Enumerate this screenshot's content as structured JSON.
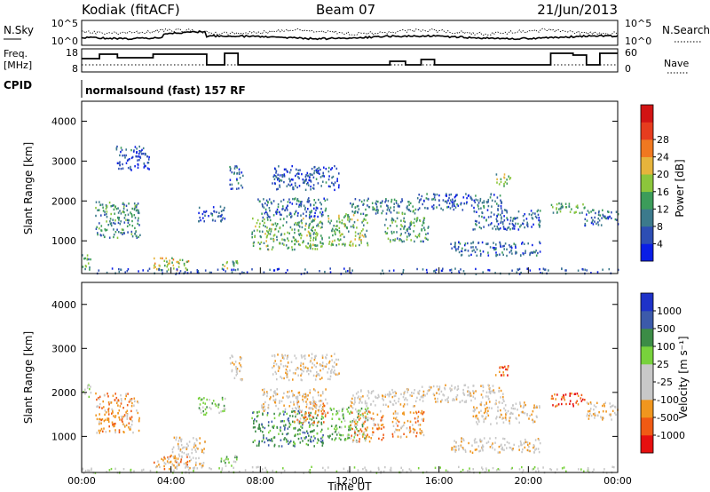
{
  "header": {
    "station": "Kodiak (fitACF)",
    "beam": "Beam 07",
    "date": "21/Jun/2013",
    "cpid_label": "CPID",
    "cpid_value": "normalsound (fast) 157 RF"
  },
  "noise_panel": {
    "left_label": "N.Sky",
    "right_label": "N.Search",
    "left_ticks": [
      "10^5",
      "10^0"
    ],
    "right_ticks": [
      "10^5",
      "10^0"
    ]
  },
  "freq_panel": {
    "left_label_line1": "Freq.",
    "left_label_line2": "[MHz]",
    "right_label": "Nave",
    "left_ticks": [
      "18",
      "8"
    ],
    "right_ticks": [
      "60",
      "0"
    ]
  },
  "colors": {
    "power": [
      "#0a1ee6",
      "#2d4eb4",
      "#3c7a8c",
      "#3c9c5a",
      "#8cc63c",
      "#e6b43c",
      "#f07820",
      "#e63c1e",
      "#d21414"
    ],
    "velocity": [
      "#e60f0f",
      "#f05a14",
      "#f0961e",
      "#c8c8c8",
      "#c8c8c8",
      "#78d23c",
      "#3c8c46",
      "#3c5aaa",
      "#1e32c8"
    ]
  },
  "chart_data": [
    {
      "type": "heatmap",
      "name": "power",
      "xlabel": "",
      "ylabel": "Slant Range [km]",
      "xlim": [
        "00:00",
        "00:00"
      ],
      "ylim": [
        180,
        4500
      ],
      "y_ticks": [
        "1000",
        "2000",
        "3000",
        "4000"
      ],
      "colorbar": {
        "label": "Power [dB]",
        "ticks": [
          "4",
          "8",
          "12",
          "16",
          "20",
          "24",
          "28"
        ],
        "range": [
          0,
          30
        ]
      },
      "echo_regions": [
        {
          "t0": 0.0,
          "t1": 0.4,
          "r0": 250,
          "r1": 700,
          "v": 10
        },
        {
          "t0": 0.6,
          "t1": 2.6,
          "r0": 1100,
          "r1": 2000,
          "v": 9
        },
        {
          "t0": 1.5,
          "t1": 3.0,
          "r0": 2800,
          "r1": 3400,
          "v": 4
        },
        {
          "t0": 3.2,
          "t1": 4.8,
          "r0": 280,
          "r1": 600,
          "v": 16
        },
        {
          "t0": 5.2,
          "t1": 6.4,
          "r0": 1500,
          "r1": 1900,
          "v": 5
        },
        {
          "t0": 6.2,
          "t1": 7.0,
          "r0": 300,
          "r1": 550,
          "v": 13
        },
        {
          "t0": 6.6,
          "t1": 7.2,
          "r0": 2300,
          "r1": 2900,
          "v": 5
        },
        {
          "t0": 7.6,
          "t1": 10.8,
          "r0": 800,
          "r1": 1600,
          "v": 12
        },
        {
          "t0": 7.8,
          "t1": 11.0,
          "r0": 1600,
          "r1": 2100,
          "v": 6
        },
        {
          "t0": 8.5,
          "t1": 11.5,
          "r0": 2300,
          "r1": 2900,
          "v": 4
        },
        {
          "t0": 11.0,
          "t1": 12.8,
          "r0": 900,
          "r1": 1700,
          "v": 13
        },
        {
          "t0": 12.0,
          "t1": 15.0,
          "r0": 1700,
          "r1": 2100,
          "v": 8
        },
        {
          "t0": 13.5,
          "t1": 15.5,
          "r0": 1000,
          "r1": 1600,
          "v": 10
        },
        {
          "t0": 15.0,
          "t1": 19.0,
          "r0": 1800,
          "r1": 2200,
          "v": 5
        },
        {
          "t0": 16.5,
          "t1": 20.5,
          "r0": 650,
          "r1": 1000,
          "v": 5
        },
        {
          "t0": 17.5,
          "t1": 20.5,
          "r0": 1300,
          "r1": 1800,
          "v": 5
        },
        {
          "t0": 18.5,
          "t1": 19.2,
          "r0": 2400,
          "r1": 2700,
          "v": 14
        },
        {
          "t0": 21.0,
          "t1": 22.5,
          "r0": 1700,
          "r1": 2000,
          "v": 12
        },
        {
          "t0": 22.5,
          "t1": 24.0,
          "r0": 1400,
          "r1": 1800,
          "v": 6
        },
        {
          "t0": 0.0,
          "t1": 24.0,
          "r0": 190,
          "r1": 330,
          "v": 4
        }
      ]
    },
    {
      "type": "heatmap",
      "name": "velocity",
      "xlabel": "Time UT",
      "ylabel": "Slant Range [km]",
      "x_ticks": [
        "00:00",
        "04:00",
        "08:00",
        "12:00",
        "16:00",
        "20:00",
        "00:00"
      ],
      "ylim": [
        180,
        4500
      ],
      "y_ticks": [
        "1000",
        "2000",
        "3000",
        "4000"
      ],
      "colorbar": {
        "label": "Velocity [m s⁻¹]",
        "ticks": [
          "-1000",
          "-500",
          "-100",
          "-25",
          "25",
          "100",
          "500",
          "1000"
        ]
      },
      "echo_regions": [
        {
          "t0": 0.0,
          "t1": 0.4,
          "r0": 1900,
          "r1": 2200,
          "v": 4
        },
        {
          "t0": 0.6,
          "t1": 2.6,
          "r0": 1100,
          "r1": 2000,
          "v": 2
        },
        {
          "t0": 3.2,
          "t1": 4.8,
          "r0": 280,
          "r1": 600,
          "v": 2
        },
        {
          "t0": 4.0,
          "t1": 5.5,
          "r0": 300,
          "r1": 1000,
          "v": 3
        },
        {
          "t0": 5.2,
          "t1": 6.4,
          "r0": 1500,
          "r1": 1900,
          "v": 5
        },
        {
          "t0": 6.2,
          "t1": 7.0,
          "r0": 300,
          "r1": 600,
          "v": 5
        },
        {
          "t0": 6.6,
          "t1": 7.2,
          "r0": 2300,
          "r1": 2900,
          "v": 3
        },
        {
          "t0": 7.6,
          "t1": 10.8,
          "r0": 800,
          "r1": 1600,
          "v": 6
        },
        {
          "t0": 9.5,
          "t1": 11.0,
          "r0": 1300,
          "r1": 1800,
          "v": 2
        },
        {
          "t0": 8.0,
          "t1": 11.0,
          "r0": 1600,
          "r1": 2100,
          "v": 3
        },
        {
          "t0": 8.5,
          "t1": 11.5,
          "r0": 2300,
          "r1": 2900,
          "v": 3
        },
        {
          "t0": 11.0,
          "t1": 12.8,
          "r0": 900,
          "r1": 1700,
          "v": 5
        },
        {
          "t0": 12.0,
          "t1": 13.5,
          "r0": 900,
          "r1": 1600,
          "v": 2
        },
        {
          "t0": 12.0,
          "t1": 15.0,
          "r0": 1700,
          "r1": 2100,
          "v": 3
        },
        {
          "t0": 13.8,
          "t1": 15.3,
          "r0": 1000,
          "r1": 1600,
          "v": 2
        },
        {
          "t0": 15.0,
          "t1": 19.0,
          "r0": 1800,
          "r1": 2200,
          "v": 3
        },
        {
          "t0": 16.5,
          "t1": 20.5,
          "r0": 650,
          "r1": 1000,
          "v": 3
        },
        {
          "t0": 17.5,
          "t1": 20.5,
          "r0": 1300,
          "r1": 1800,
          "v": 3
        },
        {
          "t0": 18.5,
          "t1": 19.2,
          "r0": 2400,
          "r1": 2700,
          "v": 1
        },
        {
          "t0": 21.0,
          "t1": 22.5,
          "r0": 1700,
          "r1": 2000,
          "v": 1
        },
        {
          "t0": 22.5,
          "t1": 24.0,
          "r0": 1400,
          "r1": 1800,
          "v": 3
        },
        {
          "t0": 0.0,
          "t1": 24.0,
          "r0": 190,
          "r1": 330,
          "v": 4
        }
      ]
    }
  ]
}
